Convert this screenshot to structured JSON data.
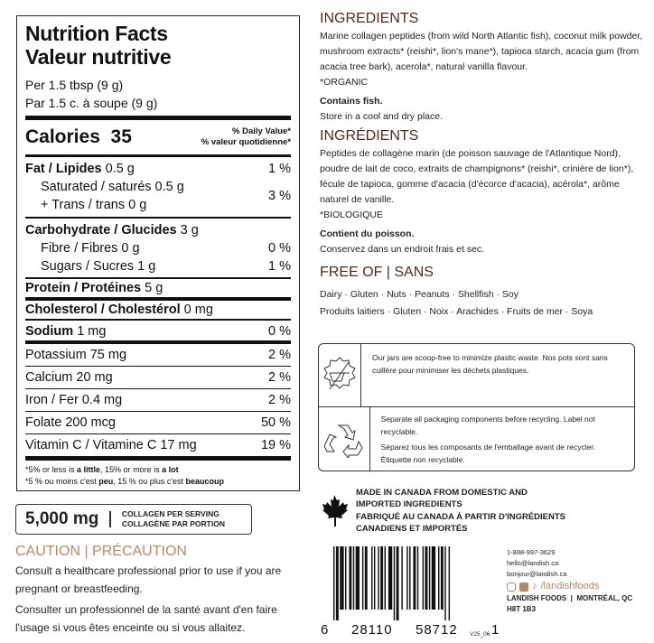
{
  "nutrition": {
    "title_en": "Nutrition Facts",
    "title_fr": "Valeur nutritive",
    "serving_en": "Per 1.5 tbsp (9 g)",
    "serving_fr": "Par 1.5 c. à soupe (9 g)",
    "calories_label": "Calories",
    "calories_value": "35",
    "dv_en": "% Daily Value*",
    "dv_fr": "% valeur quotidienne*",
    "fat": {
      "label": "Fat / Lipides",
      "amount": "0.5 g",
      "dv": "1 %"
    },
    "saturated": {
      "label": "Saturated / saturés 0.5 g"
    },
    "trans": {
      "label": "+ Trans / trans 0 g",
      "dv": "3 %"
    },
    "carb": {
      "label": "Carbohydrate / Glucides",
      "amount": "3 g"
    },
    "fibre": {
      "label": "Fibre / Fibres 0 g",
      "dv": "0 %"
    },
    "sugars": {
      "label": "Sugars / Sucres 1 g",
      "dv": "1 %"
    },
    "protein": {
      "label": "Protein / Protéines",
      "amount": "5 g"
    },
    "cholesterol": {
      "label": "Cholesterol / Cholestérol",
      "amount": "0 mg"
    },
    "sodium": {
      "label": "Sodium",
      "amount": "1 mg",
      "dv": "0 %"
    },
    "potassium": {
      "label": "Potassium 75 mg",
      "dv": "2 %"
    },
    "calcium": {
      "label": "Calcium 20 mg",
      "dv": "2 %"
    },
    "iron": {
      "label": "Iron / Fer 0.4 mg",
      "dv": "2 %"
    },
    "folate": {
      "label": "Folate 200 mcg",
      "dv": "50 %"
    },
    "vitc": {
      "label": "Vitamin C / Vitamine C 17 mg",
      "dv": "19 %"
    },
    "foot_en": {
      "a": "*5% or less is ",
      "b": "a little",
      "c": ", 15% or more is ",
      "d": "a lot"
    },
    "foot_fr": {
      "a": "*5 % ou moins c'est ",
      "b": "peu",
      "c": ", 15 % ou plus c'est ",
      "d": "beaucoup"
    }
  },
  "collagen": {
    "amount": "5,000 mg",
    "label_en": "COLLAGEN PER SERVING",
    "label_fr": "COLLAGÈNE PAR PORTION"
  },
  "caution": {
    "title": "CAUTION | PRÉCAUTION",
    "en": "Consult a healthcare professional prior to use if you are pregnant or breastfeeding.",
    "fr": "Consulter un professionnel de la santé avant d'en faire l'usage si vous êtes enceinte ou si vous allaitez."
  },
  "ingredients_en": {
    "title": "INGREDIENTS",
    "text": "Marine collagen peptides (from wild North Atlantic fish), coconut milk powder, mushroom extracts* (reishi*, lion's mane*), tapioca starch, acacia gum (from acacia tree bark), acerola*, natural vanilla flavour.",
    "organic": "*ORGANIC",
    "allergen": "Contains fish.",
    "storage": "Store in a cool and dry place."
  },
  "ingredients_fr": {
    "title": "INGRÉDIENTS",
    "text": "Peptides de collagène marin (de poisson sauvage de l'Atlantique Nord), poudre de lait de coco, extraits de champignons* (reishi*, crinière de lion*), fécule de tapioca, gomme d'acacia (d'écorce d'acacia), acérola*, arôme naturel de vanille.",
    "organic": "*BIOLOGIQUE",
    "allergen": "Contient du poisson.",
    "storage": "Conservez dans un endroit frais et sec."
  },
  "free_of": {
    "title": "FREE OF | SANS",
    "en": "Dairy · Gluten · Nuts · Peanuts · Shellfish · Soy",
    "fr": "Produits laitiers · Gluten · Noix · Arachides · Fruits de mer · Soya"
  },
  "eco": {
    "scoop_icon": "no-scoop-icon",
    "scoop_text": "Our jars are scoop-free to minimize plastic waste. Nos pots sont sans cuillère pour minimiser les déchets plastiques.",
    "recycle_icon": "recycle-icon",
    "recycle_en": "Separate all packaging components before recycling. Label not recyclable.",
    "recycle_fr": "Séparez tous les composants de l'emballage avant de recycler. Étiquette non recyclable."
  },
  "origin": {
    "icon": "maple-leaf-icon",
    "en": "MADE IN CANADA FROM DOMESTIC AND IMPORTED INGREDIENTS",
    "fr": "FABRIQUÉ AU CANADA À PARTIR D'INGRÉDIENTS CANADIENS ET IMPORTÉS"
  },
  "barcode": {
    "d1": "6",
    "d2": "28110",
    "d3": "58712",
    "d4": "1"
  },
  "contact": {
    "phone": "1-888-997-3629",
    "email_en": "hello@landish.ca",
    "email_fr": "bonjour@landish.ca",
    "social": "/landishfoods",
    "company": "LANDISH FOODS  |  MONTRÉAL, QC",
    "postal": "H8T 1B3"
  },
  "version": "V25_06",
  "colors": {
    "heading": "#4a2d20",
    "accent": "#b38a68"
  }
}
